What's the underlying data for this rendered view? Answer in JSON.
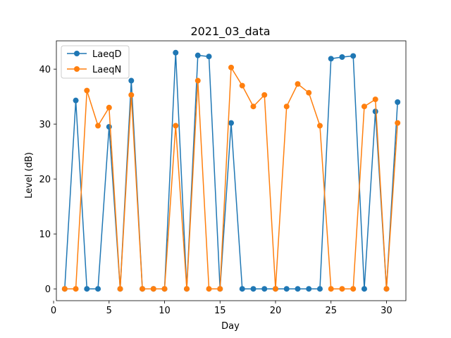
{
  "chart_data": {
    "type": "line",
    "title": "2021_03_data",
    "xlabel": "Day",
    "ylabel": "Level (dB)",
    "xlim": [
      0.25,
      31.75
    ],
    "ylim": [
      -2.15,
      45.15
    ],
    "xticks": [
      0,
      5,
      10,
      15,
      20,
      25,
      30
    ],
    "yticks": [
      0,
      10,
      20,
      30,
      40
    ],
    "legend_position": "top-left",
    "x": [
      1,
      2,
      3,
      4,
      5,
      6,
      7,
      8,
      9,
      10,
      11,
      12,
      13,
      14,
      15,
      16,
      17,
      18,
      19,
      20,
      21,
      22,
      23,
      24,
      25,
      26,
      27,
      28,
      29,
      30,
      31
    ],
    "series": [
      {
        "name": "LaeqD",
        "color": "#1f77b4",
        "values": [
          0,
          34.3,
          0,
          0,
          29.5,
          0,
          37.9,
          0,
          0,
          0,
          43.0,
          0,
          42.5,
          42.3,
          0,
          30.2,
          0,
          0,
          0,
          0,
          0,
          0,
          0,
          0,
          41.9,
          42.2,
          42.4,
          0,
          32.3,
          0,
          34.0
        ]
      },
      {
        "name": "LaeqN",
        "color": "#ff7f0e",
        "values": [
          0,
          0,
          36.1,
          29.7,
          33.0,
          0,
          35.3,
          0,
          0,
          0,
          29.7,
          0,
          37.9,
          0,
          0,
          40.3,
          37.0,
          33.2,
          35.3,
          0,
          33.2,
          37.3,
          35.7,
          29.7,
          0,
          0,
          0,
          33.2,
          34.5,
          0,
          30.2
        ]
      }
    ]
  }
}
